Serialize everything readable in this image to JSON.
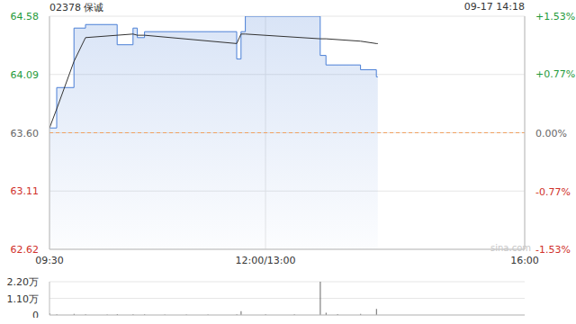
{
  "chart_data": [
    {
      "type": "line",
      "title": "02378 保诚",
      "subtitle": "09-17 14:18",
      "watermark": "sina.com",
      "x": [
        0,
        5,
        17,
        25,
        47,
        58,
        61,
        66,
        130,
        133,
        136,
        188,
        192,
        216,
        227,
        228
      ],
      "series": [
        {
          "type": "area",
          "color": "#4a7fd6",
          "values": [
            63.64,
            63.98,
            64.48,
            64.51,
            64.34,
            64.48,
            64.4,
            64.45,
            64.22,
            64.45,
            64.58,
            64.25,
            64.17,
            64.13,
            64.07,
            64.07
          ]
        },
        {
          "type": "line",
          "color": "#333333",
          "values": [
            63.64,
            63.8,
            64.2,
            64.4,
            64.42,
            64.43,
            64.42,
            64.42,
            64.35,
            64.43,
            64.43,
            64.39,
            64.39,
            64.37,
            64.35,
            64.35
          ]
        }
      ],
      "xlim": [
        0,
        330
      ],
      "xticks": [
        {
          "value": 0,
          "label": "09:30"
        },
        {
          "value": 150,
          "label": "12:00/13:00"
        },
        {
          "value": 330,
          "label": "16:00"
        }
      ],
      "ylim": [
        62.62,
        64.58
      ],
      "yticks": [
        62.62,
        63.11,
        {
          "value": 63.6,
          "label": "63.60"
        },
        64.09,
        64.58
      ],
      "y2lim": [
        -1.53,
        1.53
      ],
      "y2ticks": [
        {
          "value": -1.53,
          "label": "-1.53%"
        },
        {
          "value": -0.77,
          "label": "-0.77%"
        },
        {
          "value": 0,
          "label": "0.00%"
        },
        {
          "value": 0.77,
          "label": "+0.77%"
        },
        {
          "value": 1.53,
          "label": "+1.53%"
        }
      ],
      "prev_close": 63.6,
      "grid": true
    },
    {
      "type": "bar",
      "color": "#666666",
      "x": [
        0,
        5,
        17,
        25,
        40,
        47,
        58,
        66,
        80,
        95,
        110,
        130,
        133,
        150,
        170,
        188,
        192,
        200,
        216,
        227
      ],
      "values": [
        1200,
        500,
        800,
        400,
        300,
        600,
        500,
        400,
        300,
        350,
        300,
        500,
        2500,
        400,
        450,
        22000,
        1500,
        600,
        800,
        4000
      ],
      "xlim": [
        0,
        330
      ],
      "ylim": [
        0,
        22000
      ],
      "yticks": [
        0,
        {
          "value": 11000,
          "label": "1.10万"
        },
        {
          "value": 22000,
          "label": "2.20万"
        }
      ],
      "tick_labels": "y"
    }
  ]
}
